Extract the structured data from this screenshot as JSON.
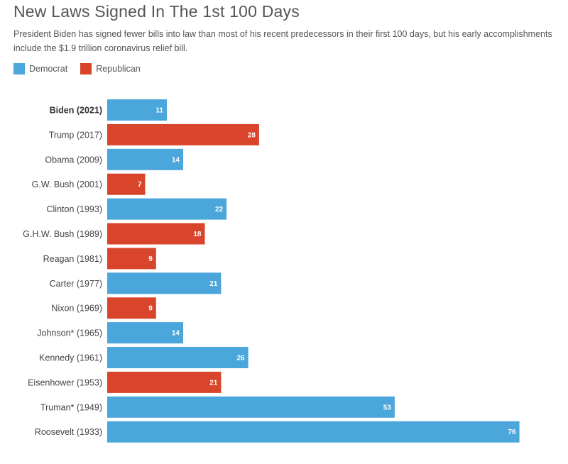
{
  "chart_data": {
    "type": "bar",
    "orientation": "horizontal",
    "title": "New Laws Signed In The 1st 100 Days",
    "subtitle": "President Biden has signed fewer bills into law than most of his recent predecessors in their first 100 days, but his early accomplishments include the $1.9 trillion coronavirus relief bill.",
    "legend": [
      {
        "name": "Democrat",
        "color": "#4aa6db"
      },
      {
        "name": "Republican",
        "color": "#d9452b"
      }
    ],
    "categories": [
      "Biden (2021)",
      "Trump (2017)",
      "Obama (2009)",
      "G.W. Bush (2001)",
      "Clinton (1993)",
      "G.H.W. Bush (1989)",
      "Reagan (1981)",
      "Carter (1977)",
      "Nixon (1969)",
      "Johnson* (1965)",
      "Kennedy (1961)",
      "Eisenhower (1953)",
      "Truman* (1949)",
      "Roosevelt (1933)"
    ],
    "values": [
      11,
      28,
      14,
      7,
      22,
      18,
      9,
      21,
      9,
      14,
      26,
      21,
      53,
      76
    ],
    "party": [
      "Democrat",
      "Republican",
      "Democrat",
      "Republican",
      "Democrat",
      "Republican",
      "Republican",
      "Democrat",
      "Republican",
      "Democrat",
      "Democrat",
      "Republican",
      "Democrat",
      "Democrat"
    ],
    "highlighted_category": "Biden (2021)",
    "xlim": [
      0,
      76
    ],
    "grid": false,
    "legend_position": "top-left"
  }
}
